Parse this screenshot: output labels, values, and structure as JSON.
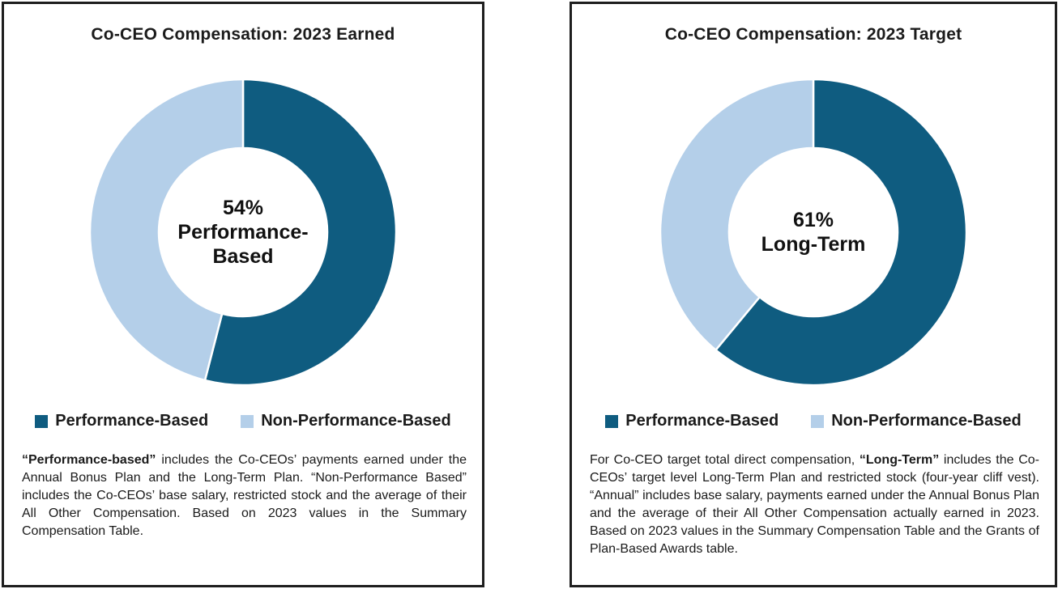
{
  "colors": {
    "performance_based": "#0F5C80",
    "non_performance_based": "#B4CFE9",
    "border": "#1e1e1e"
  },
  "panels": [
    {
      "title": "Co-CEO Compensation: 2023 Earned",
      "center_lines": [
        "54%",
        "Performance-",
        "Based"
      ],
      "legend": [
        {
          "label": "Performance-Based",
          "color": "#0F5C80"
        },
        {
          "label": "Non-Performance-Based",
          "color": "#B4CFE9"
        }
      ],
      "footnote": [
        {
          "text": "“Performance-based”",
          "bold": true
        },
        {
          "text": " includes the Co-CEOs’ payments earned under the Annual Bonus Plan and the Long-Term Plan. “Non-Performance Based” includes the Co-CEOs’ base salary, restricted stock and the average of their All Other Compensation. Based on 2023 values in the Summary Compensation Table.",
          "bold": false
        }
      ]
    },
    {
      "title": "Co-CEO Compensation: 2023 Target",
      "center_lines": [
        "61%",
        "Long-Term"
      ],
      "legend": [
        {
          "label": "Performance-Based",
          "color": "#0F5C80"
        },
        {
          "label": "Non-Performance-Based",
          "color": "#B4CFE9"
        }
      ],
      "footnote": [
        {
          "text": "For Co-CEO target total direct compensation, ",
          "bold": false
        },
        {
          "text": "“Long-Term”",
          "bold": true
        },
        {
          "text": " includes the Co-CEOs’ target level Long-Term Plan and restricted stock (four-year cliff vest). “Annual” includes base salary, payments earned under the Annual Bonus Plan and the average of their All Other Compensation actually earned in 2023. Based on 2023 values in the Summary Compensation Table and the Grants of Plan-Based Awards table.",
          "bold": false
        }
      ]
    }
  ],
  "chart_data": [
    {
      "type": "pie",
      "subtype": "donut",
      "title": "Co-CEO Compensation: 2023 Earned",
      "center_label": "54% Performance-Based",
      "start_angle_deg": 0,
      "direction": "clockwise",
      "legend_position": "bottom",
      "series": [
        {
          "name": "Performance-Based",
          "value": 54,
          "color": "#0F5C80"
        },
        {
          "name": "Non-Performance-Based",
          "value": 46,
          "color": "#B4CFE9"
        }
      ]
    },
    {
      "type": "pie",
      "subtype": "donut",
      "title": "Co-CEO Compensation: 2023 Target",
      "center_label": "61% Long-Term",
      "start_angle_deg": 0,
      "direction": "clockwise",
      "legend_position": "bottom",
      "series": [
        {
          "name": "Performance-Based",
          "value": 61,
          "color": "#0F5C80"
        },
        {
          "name": "Non-Performance-Based",
          "value": 39,
          "color": "#B4CFE9"
        }
      ]
    }
  ]
}
